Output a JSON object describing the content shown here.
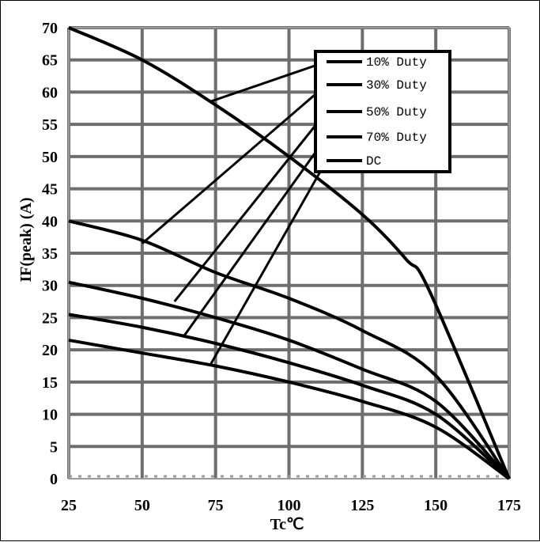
{
  "chart_data": {
    "type": "line",
    "title": "",
    "xlabel": "Tc℃",
    "ylabel": "IF(peak) (A)",
    "xlim": [
      25,
      175
    ],
    "ylim": [
      0,
      70
    ],
    "x_ticks": [
      25,
      50,
      75,
      100,
      125,
      150,
      175
    ],
    "y_ticks": [
      0,
      5,
      10,
      15,
      20,
      25,
      30,
      35,
      40,
      45,
      50,
      55,
      60,
      65,
      70
    ],
    "grid": true,
    "legend_position": "top-right",
    "series": [
      {
        "name": "10% Duty",
        "x": [
          25,
          50,
          75,
          100,
          125,
          140,
          148,
          175
        ],
        "y": [
          70,
          65,
          58,
          50,
          41,
          34,
          29,
          0
        ]
      },
      {
        "name": "30% Duty",
        "x": [
          25,
          50,
          75,
          100,
          125,
          150,
          175
        ],
        "y": [
          40,
          37,
          32,
          28,
          23,
          16,
          0
        ]
      },
      {
        "name": "50% Duty",
        "x": [
          25,
          50,
          75,
          100,
          125,
          150,
          175
        ],
        "y": [
          30.5,
          28,
          25,
          21.5,
          17,
          12,
          0
        ]
      },
      {
        "name": "70% Duty",
        "x": [
          25,
          50,
          75,
          100,
          125,
          150,
          175
        ],
        "y": [
          25.5,
          23.5,
          21,
          18,
          14.5,
          10,
          0
        ]
      },
      {
        "name": "DC",
        "x": [
          25,
          50,
          75,
          100,
          125,
          150,
          175
        ],
        "y": [
          21.5,
          19.5,
          17.5,
          15,
          12,
          8,
          0
        ]
      }
    ],
    "annotations": [
      {
        "series": "10% Duty",
        "at": [
          73,
          58.5
        ]
      },
      {
        "series": "30% Duty",
        "at": [
          50,
          36.5
        ]
      },
      {
        "series": "50% Duty",
        "at": [
          61,
          27.5
        ]
      },
      {
        "series": "70% Duty",
        "at": [
          64,
          22
        ]
      },
      {
        "series": "DC",
        "at": [
          73,
          17.5
        ]
      }
    ]
  }
}
